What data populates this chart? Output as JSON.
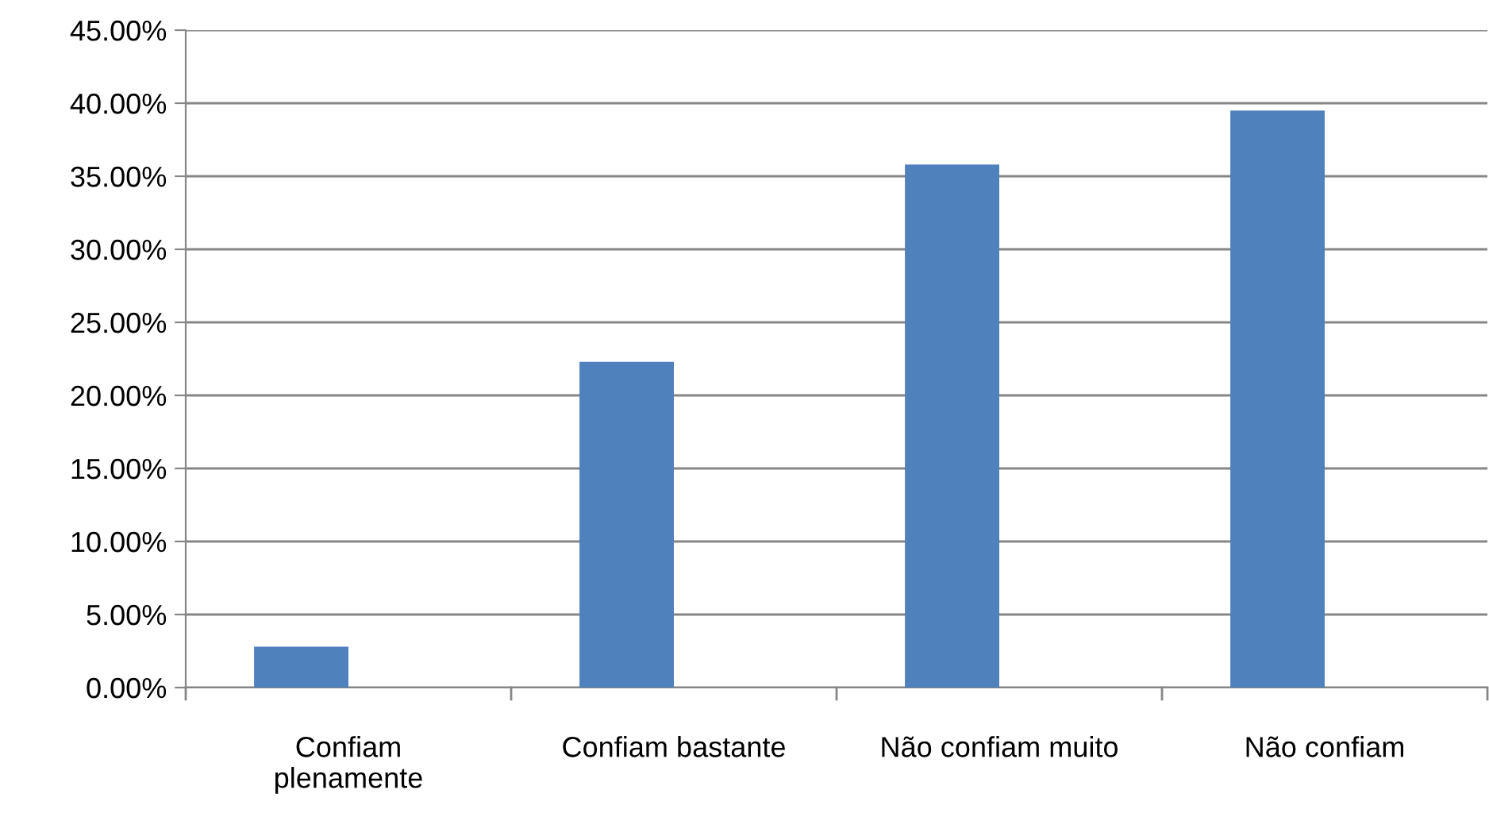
{
  "chart_data": {
    "type": "bar",
    "categories": [
      "Confiam\nplenamente",
      "Confiam bastante",
      "Não confiam muito",
      "Não confiam"
    ],
    "values": [
      2.8,
      22.3,
      35.8,
      39.5
    ],
    "color": "#4f81bd",
    "ylim": [
      0,
      45
    ],
    "yticks": [
      {
        "value": 0,
        "label": "0.00%"
      },
      {
        "value": 5,
        "label": "5.00%"
      },
      {
        "value": 10,
        "label": "10.00%"
      },
      {
        "value": 15,
        "label": "15.00%"
      },
      {
        "value": 20,
        "label": "20.00%"
      },
      {
        "value": 25,
        "label": "25.00%"
      },
      {
        "value": 30,
        "label": "30.00%"
      },
      {
        "value": 35,
        "label": "35.00%"
      },
      {
        "value": 40,
        "label": "40.00%"
      },
      {
        "value": 45,
        "label": "45.00%"
      }
    ],
    "grid": "y"
  }
}
